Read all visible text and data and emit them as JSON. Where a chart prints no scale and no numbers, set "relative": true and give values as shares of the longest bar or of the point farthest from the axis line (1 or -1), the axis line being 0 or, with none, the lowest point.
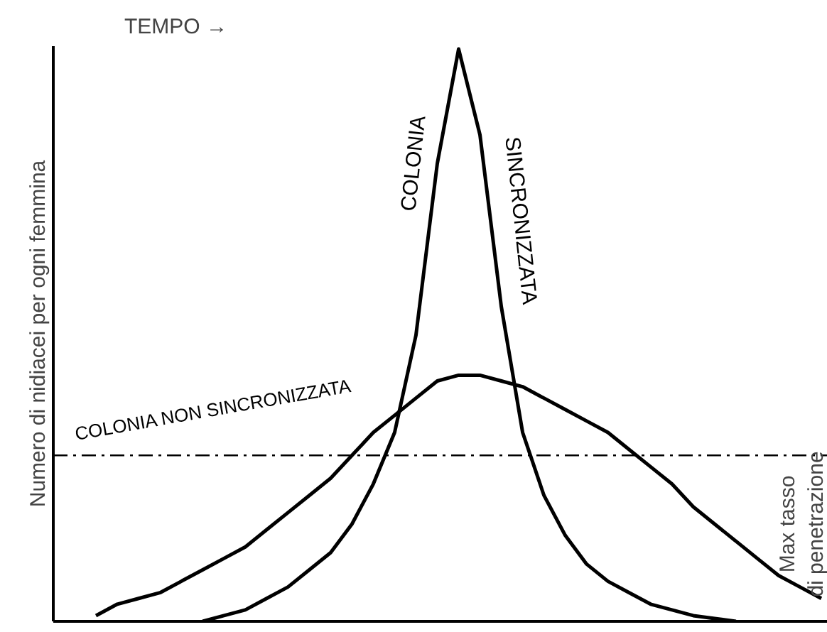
{
  "chart_data": {
    "type": "line",
    "relative": true,
    "xlabel": "TEMPO →",
    "ylabel": "Numero di nidiacei per ogni femmina",
    "categories": [
      null,
      null,
      null,
      null,
      null,
      null,
      null,
      null,
      null,
      null,
      null,
      null,
      null,
      null,
      null,
      null,
      null,
      null,
      null,
      null,
      null,
      null,
      null,
      null,
      null,
      null,
      null,
      null,
      null,
      null,
      null,
      null,
      null,
      null,
      null,
      null,
      null
    ],
    "series": [
      {
        "name": "COLONIA SINCRONIZZATA",
        "color": "#000000",
        "values": [
          null,
          null,
          null,
          null,
          null,
          null,
          null,
          0.0,
          0.01,
          0.02,
          0.04,
          0.06,
          0.09,
          0.12,
          0.17,
          0.24,
          0.33,
          0.5,
          0.8,
          1.0,
          0.85,
          0.55,
          0.33,
          0.22,
          0.15,
          0.1,
          0.07,
          0.05,
          0.03,
          0.02,
          0.01,
          0.005,
          0.0,
          null,
          null,
          null,
          null
        ]
      },
      {
        "name": "COLONIA NON SINCRONIZZATA",
        "color": "#000000",
        "values": [
          null,
          null,
          0.01,
          0.03,
          0.04,
          0.05,
          0.07,
          0.09,
          0.11,
          0.13,
          0.16,
          0.19,
          0.22,
          0.25,
          0.29,
          0.33,
          0.36,
          0.39,
          0.42,
          0.43,
          0.43,
          0.42,
          0.41,
          0.39,
          0.37,
          0.35,
          0.33,
          0.3,
          0.27,
          0.24,
          0.2,
          0.17,
          0.14,
          0.11,
          0.08,
          0.06,
          0.04
        ]
      }
    ],
    "ref_lines": [
      {
        "axis": "y",
        "value": 0.29,
        "label": "Max tasso di penetrazione",
        "color": "#000000",
        "line_style": "dashdot"
      }
    ]
  }
}
